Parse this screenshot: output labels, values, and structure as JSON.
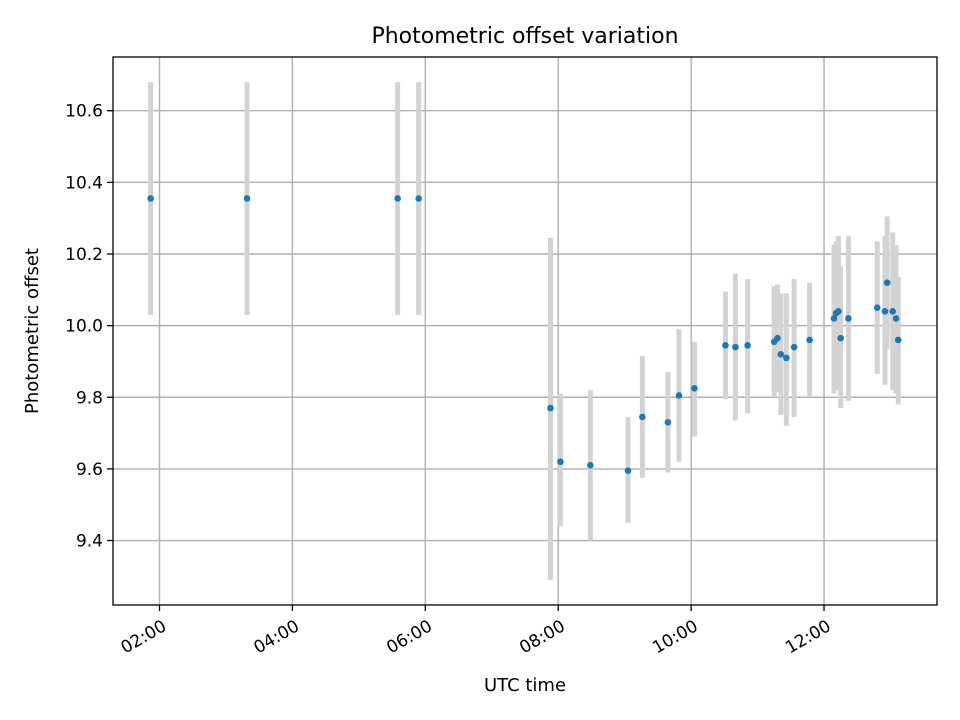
{
  "chart_data": {
    "type": "scatter",
    "title": "Photometric offset variation",
    "xlabel": "UTC time",
    "ylabel": "Photometric offset",
    "x_axis": "time",
    "xlim": [
      "01:18",
      "13:42"
    ],
    "ylim": [
      9.22,
      10.75
    ],
    "xticks": [
      "02:00",
      "04:00",
      "06:00",
      "08:00",
      "10:00",
      "12:00"
    ],
    "yticks": [
      9.4,
      9.6,
      9.8,
      10.0,
      10.2,
      10.4,
      10.6
    ],
    "grid": true,
    "colors": {
      "point": "#1f77b4",
      "errorbar": "#d3d3d3"
    },
    "points": [
      {
        "t": "01:52",
        "y": 10.355,
        "lo": 10.03,
        "hi": 10.68
      },
      {
        "t": "03:19",
        "y": 10.355,
        "lo": 10.03,
        "hi": 10.68
      },
      {
        "t": "05:35",
        "y": 10.355,
        "lo": 10.03,
        "hi": 10.68
      },
      {
        "t": "05:54",
        "y": 10.355,
        "lo": 10.03,
        "hi": 10.68
      },
      {
        "t": "07:53",
        "y": 9.77,
        "lo": 9.29,
        "hi": 10.245
      },
      {
        "t": "08:02",
        "y": 9.62,
        "lo": 9.44,
        "hi": 9.81
      },
      {
        "t": "08:29",
        "y": 9.61,
        "lo": 9.4,
        "hi": 9.82
      },
      {
        "t": "09:03",
        "y": 9.595,
        "lo": 9.45,
        "hi": 9.745
      },
      {
        "t": "09:16",
        "y": 9.745,
        "lo": 9.575,
        "hi": 9.915
      },
      {
        "t": "09:39",
        "y": 9.73,
        "lo": 9.59,
        "hi": 9.87
      },
      {
        "t": "09:49",
        "y": 9.805,
        "lo": 9.62,
        "hi": 9.99
      },
      {
        "t": "10:03",
        "y": 9.825,
        "lo": 9.69,
        "hi": 9.955
      },
      {
        "t": "10:31",
        "y": 9.945,
        "lo": 9.795,
        "hi": 10.095
      },
      {
        "t": "10:40",
        "y": 9.94,
        "lo": 9.735,
        "hi": 10.145
      },
      {
        "t": "10:51",
        "y": 9.945,
        "lo": 9.755,
        "hi": 10.13
      },
      {
        "t": "11:15",
        "y": 9.955,
        "lo": 9.8,
        "hi": 10.11
      },
      {
        "t": "11:18",
        "y": 9.965,
        "lo": 9.815,
        "hi": 10.115
      },
      {
        "t": "11:21",
        "y": 9.92,
        "lo": 9.75,
        "hi": 10.09
      },
      {
        "t": "11:26",
        "y": 9.91,
        "lo": 9.72,
        "hi": 10.09
      },
      {
        "t": "11:33",
        "y": 9.94,
        "lo": 9.745,
        "hi": 10.13
      },
      {
        "t": "11:47",
        "y": 9.96,
        "lo": 9.8,
        "hi": 10.12
      },
      {
        "t": "12:09",
        "y": 10.02,
        "lo": 9.81,
        "hi": 10.225
      },
      {
        "t": "12:11",
        "y": 10.035,
        "lo": 9.82,
        "hi": 10.235
      },
      {
        "t": "12:13",
        "y": 10.04,
        "lo": 9.83,
        "hi": 10.25
      },
      {
        "t": "12:15",
        "y": 9.965,
        "lo": 9.77,
        "hi": 10.165
      },
      {
        "t": "12:22",
        "y": 10.02,
        "lo": 9.79,
        "hi": 10.25
      },
      {
        "t": "12:48",
        "y": 10.05,
        "lo": 9.865,
        "hi": 10.235
      },
      {
        "t": "12:55",
        "y": 10.04,
        "lo": 9.835,
        "hi": 10.25
      },
      {
        "t": "12:57",
        "y": 10.12,
        "lo": 9.935,
        "hi": 10.305
      },
      {
        "t": "13:02",
        "y": 10.04,
        "lo": 9.82,
        "hi": 10.26
      },
      {
        "t": "13:05",
        "y": 10.02,
        "lo": 9.81,
        "hi": 10.225
      },
      {
        "t": "13:07",
        "y": 9.96,
        "lo": 9.78,
        "hi": 10.135
      }
    ]
  }
}
